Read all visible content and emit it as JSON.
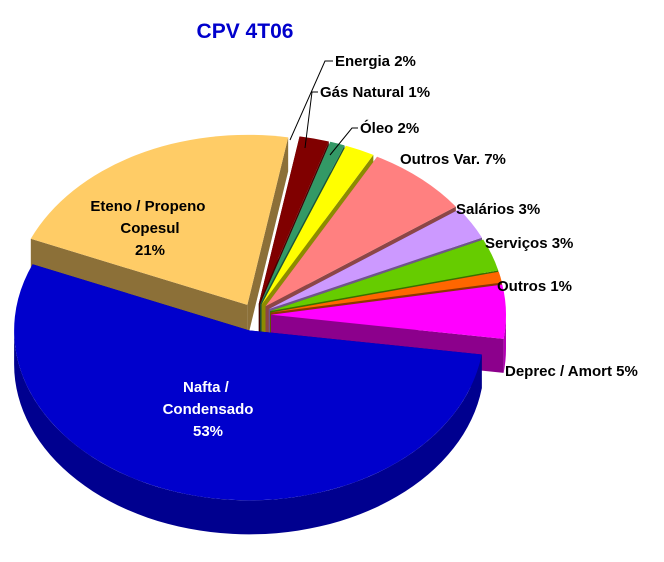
{
  "chart_data": {
    "type": "pie3d",
    "title": "CPV 4T06",
    "categories": [
      "Energia",
      "Gás Natural",
      "Óleo",
      "Outros Var.",
      "Salários",
      "Serviços",
      "Outros",
      "Deprec / Amort",
      "Nafta / Condensado",
      "Eteno / Propeno Copesul"
    ],
    "values": [
      2,
      1,
      2,
      7,
      3,
      3,
      1,
      5,
      53,
      21
    ],
    "value_labels": [
      "2%",
      " 1%",
      "2%",
      "7%",
      "3%",
      "3%",
      "1%",
      "5%",
      "53%",
      "21%"
    ],
    "colors": [
      "#800000",
      "#339966",
      "#ffff00",
      "#ff8080",
      "#cc99ff",
      "#66cc00",
      "#ff6600",
      "#ff00ff",
      "#0000cc",
      "#ffcc66"
    ]
  }
}
